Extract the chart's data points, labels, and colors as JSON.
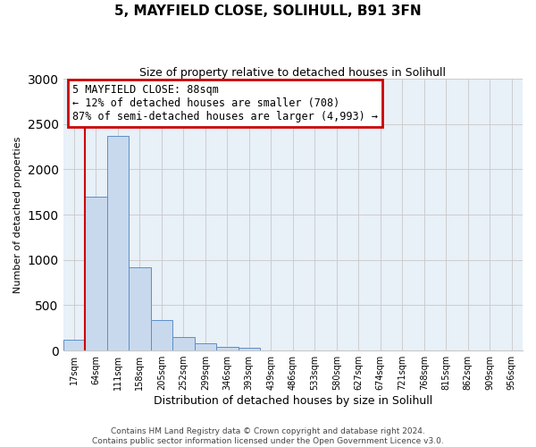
{
  "title": "5, MAYFIELD CLOSE, SOLIHULL, B91 3FN",
  "subtitle": "Size of property relative to detached houses in Solihull",
  "xlabel": "Distribution of detached houses by size in Solihull",
  "ylabel": "Number of detached properties",
  "bar_values": [
    120,
    1700,
    2370,
    920,
    340,
    150,
    80,
    45,
    30,
    0,
    0,
    0,
    0,
    0,
    0,
    0,
    0,
    0,
    0,
    0,
    0
  ],
  "bar_labels": [
    "17sqm",
    "64sqm",
    "111sqm",
    "158sqm",
    "205sqm",
    "252sqm",
    "299sqm",
    "346sqm",
    "393sqm",
    "439sqm",
    "486sqm",
    "533sqm",
    "580sqm",
    "627sqm",
    "674sqm",
    "721sqm",
    "768sqm",
    "815sqm",
    "862sqm",
    "909sqm",
    "956sqm"
  ],
  "bar_color": "#c8d9ed",
  "bar_edge_color": "#5b8fc9",
  "ylim": [
    0,
    3000
  ],
  "yticks": [
    0,
    500,
    1000,
    1500,
    2000,
    2500,
    3000
  ],
  "annotation_title": "5 MAYFIELD CLOSE: 88sqm",
  "annotation_line1": "← 12% of detached houses are smaller (708)",
  "annotation_line2": "87% of semi-detached houses are larger (4,993) →",
  "annotation_box_color": "#ffffff",
  "annotation_box_edge_color": "#cc0000",
  "red_line_color": "#cc0000",
  "footer_line1": "Contains HM Land Registry data © Crown copyright and database right 2024.",
  "footer_line2": "Contains public sector information licensed under the Open Government Licence v3.0.",
  "background_color": "#ffffff",
  "plot_bg_color": "#e8f0f8",
  "grid_color": "#c8c8c8",
  "title_fontsize": 11,
  "subtitle_fontsize": 9,
  "ylabel_fontsize": 8,
  "xlabel_fontsize": 9,
  "tick_fontsize": 7,
  "footer_fontsize": 6.5,
  "red_line_bin": 1
}
